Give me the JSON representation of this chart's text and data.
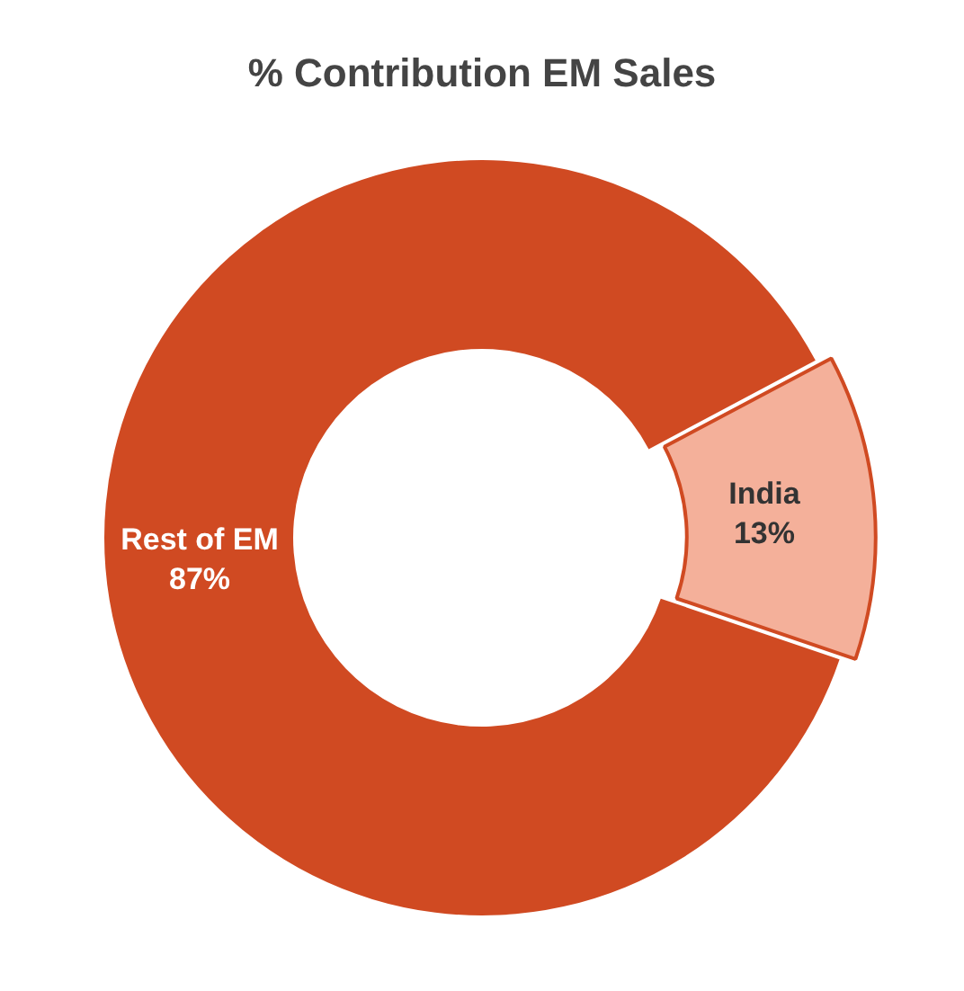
{
  "chart_data": {
    "type": "donut",
    "title": "% Contribution EM Sales",
    "categories": [
      "India",
      "Rest of EM"
    ],
    "values": [
      13,
      87
    ],
    "colors": [
      "#f4b09a",
      "#d04a22"
    ],
    "value_labels": [
      "13%",
      "87%"
    ]
  }
}
